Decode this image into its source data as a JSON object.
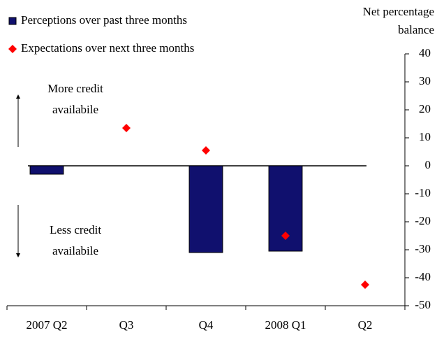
{
  "chart_data": {
    "type": "bar",
    "categories": [
      "2007 Q2",
      "Q3",
      "Q4",
      "2008 Q1",
      "Q2"
    ],
    "series": [
      {
        "name": "Perceptions over past three months",
        "color": "#10106e",
        "mark": "bar",
        "values": [
          -3,
          null,
          -31,
          -30.5,
          null
        ]
      },
      {
        "name": "Expectations over next three months",
        "color": "#ff0000",
        "mark": "diamond",
        "values": [
          null,
          13.5,
          5.5,
          -25,
          -42.5
        ]
      }
    ],
    "y_label": [
      "Net percentage",
      "balance"
    ],
    "annotations": [
      {
        "lines": [
          "More credit",
          "availabile"
        ],
        "direction": "up"
      },
      {
        "lines": [
          "Less credit",
          "availabile"
        ],
        "direction": "down"
      }
    ],
    "ylim": [
      -50,
      40
    ],
    "yticks": [
      40,
      30,
      20,
      10,
      0,
      -10,
      -20,
      -30,
      -40,
      -50
    ],
    "axis_side": "right",
    "legend": "top-left"
  }
}
